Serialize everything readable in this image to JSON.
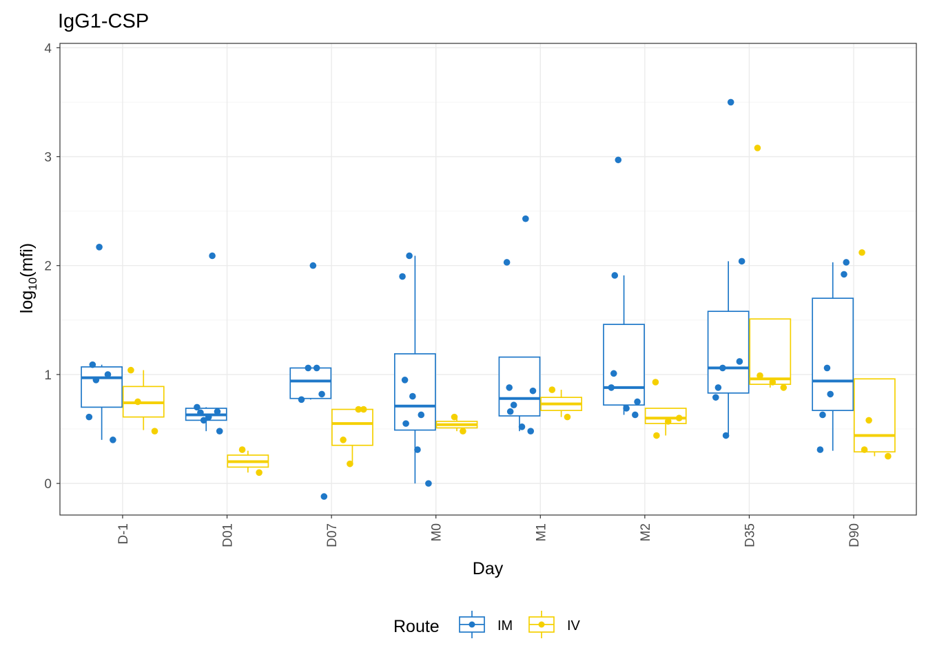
{
  "chart_data": {
    "type": "box",
    "title": "IgG1-CSP",
    "xlabel": "Day",
    "ylabel_base": "log",
    "ylabel_sub": "10",
    "ylabel_arg": "(mfi)",
    "ylim": [
      -0.29,
      4.04
    ],
    "yticks": [
      "0",
      "1",
      "2",
      "3",
      "4"
    ],
    "categories": [
      "D-1",
      "D01",
      "D07",
      "M0",
      "M1",
      "M2",
      "D35",
      "D90"
    ],
    "grid": true,
    "legend": {
      "title": "Route",
      "position": "bottom",
      "labels": [
        "IM",
        "IV"
      ]
    },
    "series": [
      {
        "name": "IM",
        "color": "#1f78c8",
        "boxes": [
          {
            "q1": 0.7,
            "median": 0.97,
            "q3": 1.07,
            "lo": 0.4,
            "hi": 1.09,
            "points": [
              0.61,
              0.95,
              0.4,
              2.17,
              1.0,
              1.09
            ]
          },
          {
            "q1": 0.58,
            "median": 0.63,
            "q3": 0.69,
            "lo": 0.48,
            "hi": 0.7,
            "points": [
              0.65,
              0.66,
              0.58,
              2.09,
              0.7,
              0.61,
              0.48
            ]
          },
          {
            "q1": 0.78,
            "median": 0.94,
            "q3": 1.06,
            "lo": 0.77,
            "hi": 1.06,
            "points": [
              0.82,
              1.06,
              1.06,
              0.77,
              2.0,
              -0.12
            ]
          },
          {
            "q1": 0.49,
            "median": 0.71,
            "q3": 1.19,
            "lo": 0.0,
            "hi": 2.09,
            "points": [
              0.8,
              0.63,
              0.55,
              0.31,
              0.0,
              0.95,
              1.9,
              2.09
            ]
          },
          {
            "q1": 0.62,
            "median": 0.78,
            "q3": 1.16,
            "lo": 0.48,
            "hi": 1.16,
            "points": [
              2.43,
              0.66,
              0.52,
              0.85,
              0.88,
              2.03,
              0.72,
              0.48
            ]
          },
          {
            "q1": 0.72,
            "median": 0.88,
            "q3": 1.46,
            "lo": 0.63,
            "hi": 1.91,
            "points": [
              1.91,
              0.69,
              0.75,
              1.01,
              0.88,
              2.97,
              0.63
            ]
          },
          {
            "q1": 0.83,
            "median": 1.06,
            "q3": 1.58,
            "lo": 0.44,
            "hi": 2.04,
            "points": [
              3.5,
              2.04,
              0.88,
              0.79,
              1.06,
              1.12,
              0.44
            ]
          },
          {
            "q1": 0.67,
            "median": 0.94,
            "q3": 1.7,
            "lo": 0.3,
            "hi": 2.03,
            "points": [
              2.03,
              0.63,
              0.31,
              1.06,
              1.92,
              0.82
            ]
          }
        ]
      },
      {
        "name": "IV",
        "color": "#f5d000",
        "boxes": [
          {
            "q1": 0.61,
            "median": 0.74,
            "q3": 0.89,
            "lo": 0.49,
            "hi": 1.04,
            "points": [
              1.04,
              0.75,
              0.48
            ]
          },
          {
            "q1": 0.15,
            "median": 0.2,
            "q3": 0.26,
            "lo": 0.1,
            "hi": 0.3,
            "points": [
              0.31,
              0.1
            ]
          },
          {
            "q1": 0.35,
            "median": 0.55,
            "q3": 0.68,
            "lo": 0.18,
            "hi": 0.68,
            "points": [
              0.68,
              0.18,
              0.68,
              0.4
            ]
          },
          {
            "q1": 0.51,
            "median": 0.54,
            "q3": 0.57,
            "lo": 0.48,
            "hi": 0.61,
            "points": [
              0.61,
              0.48
            ]
          },
          {
            "q1": 0.67,
            "median": 0.73,
            "q3": 0.79,
            "lo": 0.61,
            "hi": 0.86,
            "points": [
              0.61,
              0.86
            ]
          },
          {
            "q1": 0.55,
            "median": 0.6,
            "q3": 0.69,
            "lo": 0.44,
            "hi": 0.69,
            "points": [
              0.44,
              0.57,
              0.6,
              0.93
            ]
          },
          {
            "q1": 0.91,
            "median": 0.96,
            "q3": 1.51,
            "lo": 0.88,
            "hi": 1.51,
            "points": [
              0.93,
              0.88,
              0.99,
              3.08
            ]
          },
          {
            "q1": 0.29,
            "median": 0.44,
            "q3": 0.96,
            "lo": 0.25,
            "hi": 0.96,
            "points": [
              0.25,
              0.31,
              2.12,
              0.58
            ]
          }
        ]
      }
    ]
  }
}
